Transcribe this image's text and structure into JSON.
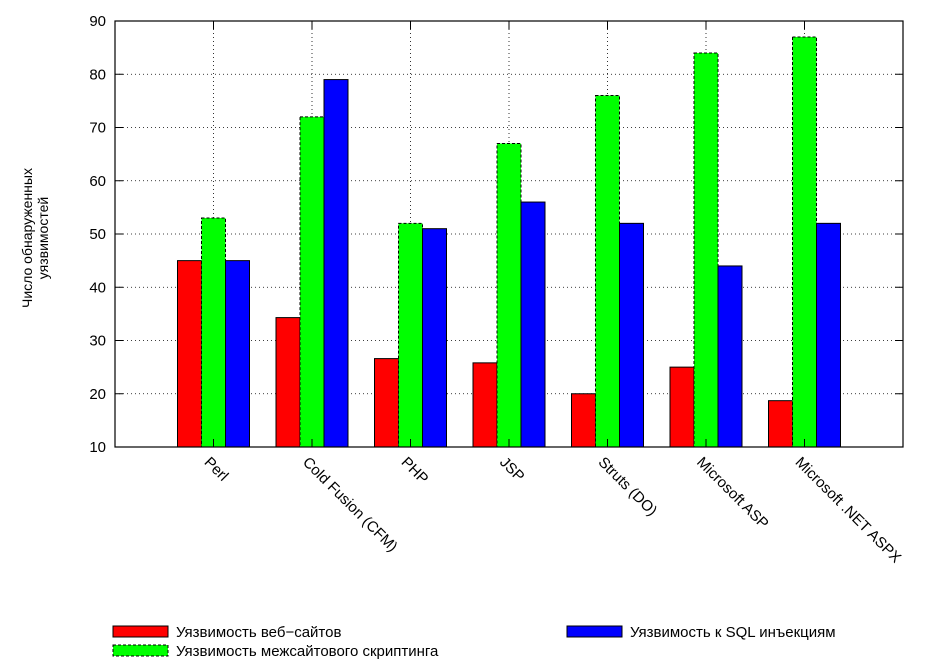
{
  "chart_data": {
    "type": "bar",
    "title": "",
    "xlabel": "",
    "ylabel_lines": [
      "Число обнаруженных",
      "уязвимостей"
    ],
    "ylim": [
      10,
      90
    ],
    "yticks": [
      10,
      20,
      30,
      40,
      50,
      60,
      70,
      80,
      90
    ],
    "grid": true,
    "legend_position": "bottom",
    "categories": [
      "Perl",
      "Cold Fusion (CFM)",
      "PHP",
      "JSP",
      "Struts (DO)",
      "Microsoft ASP",
      "Microsoft .NET ASPX"
    ],
    "series": [
      {
        "name": "Уязвимость веб−сайтов",
        "color": "#ff0000",
        "dashed_border": false,
        "values": [
          45,
          34.3,
          26.6,
          25.8,
          20,
          25,
          18.7
        ]
      },
      {
        "name": "Уязвимость межсайтового скриптинга",
        "color": "#00ff00",
        "dashed_border": true,
        "values": [
          53,
          72,
          52,
          67,
          76,
          84,
          87
        ]
      },
      {
        "name": "Уязвимость к SQL инъекциям",
        "color": "#0000ff",
        "dashed_border": false,
        "values": [
          45,
          79,
          51,
          56,
          52,
          44,
          52
        ]
      }
    ]
  }
}
